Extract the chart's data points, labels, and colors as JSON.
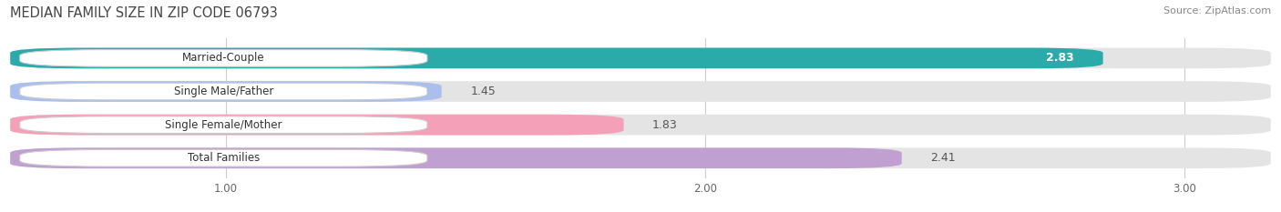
{
  "title": "MEDIAN FAMILY SIZE IN ZIP CODE 06793",
  "source": "Source: ZipAtlas.com",
  "categories": [
    "Married-Couple",
    "Single Male/Father",
    "Single Female/Mother",
    "Total Families"
  ],
  "values": [
    2.83,
    1.45,
    1.83,
    2.41
  ],
  "bar_colors": [
    "#2BAAAA",
    "#AABFEE",
    "#F4A0B8",
    "#C0A0D0"
  ],
  "xlim": [
    0.55,
    3.18
  ],
  "xticks": [
    1.0,
    2.0,
    3.0
  ],
  "xtick_labels": [
    "1.00",
    "2.00",
    "3.00"
  ],
  "title_fontsize": 10.5,
  "source_fontsize": 8,
  "bar_label_fontsize": 9,
  "category_fontsize": 8.5,
  "background_color": "#FFFFFF",
  "bar_bg_color": "#E4E4E4",
  "label_box_color": "#FFFFFF",
  "value_inside_color": "#FFFFFF",
  "value_outside_color": "#555555",
  "inside_threshold": 2.5
}
